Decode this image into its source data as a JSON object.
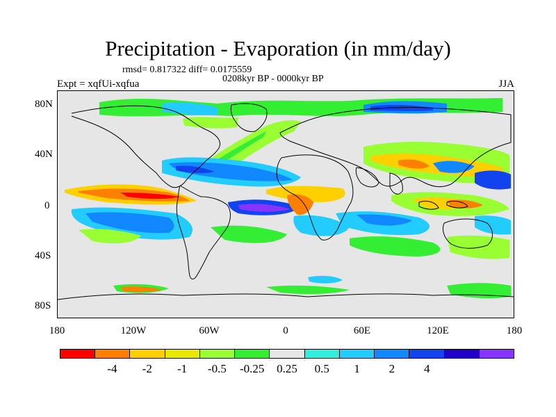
{
  "figure": {
    "title": "Precipitation - Evaporation (in mm/day)",
    "stats": "rmsd= 0.817322 diff= 0.0175559",
    "period": "0208kyr BP - 0000kyr BP",
    "experiment": "Expt = xqfUi-xqfua",
    "season": "JJA"
  },
  "axes": {
    "y_labels": [
      "80N",
      "40N",
      "0",
      "40S",
      "80S"
    ],
    "x_labels": [
      "180",
      "120W",
      "60W",
      "0",
      "60E",
      "120E",
      "180"
    ]
  },
  "colorbar": {
    "colors": [
      "#ff0000",
      "#ff8000",
      "#ffd000",
      "#e8e800",
      "#99ff33",
      "#33ee33",
      "#e6e6e6",
      "#33eedd",
      "#22ccff",
      "#1188ff",
      "#1144ee",
      "#2200cc",
      "#8833ff"
    ],
    "labels": [
      "-4",
      "-2",
      "-1",
      "-0.5",
      "-0.25",
      "0.25",
      "0.5",
      "1",
      "2",
      "4"
    ]
  }
}
